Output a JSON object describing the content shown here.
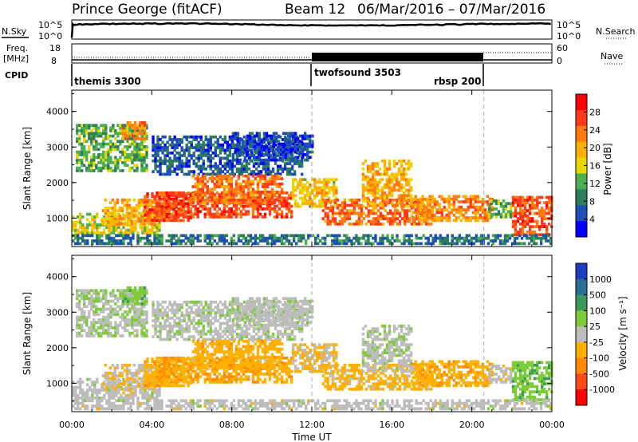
{
  "title_station": "Prince George (fitACF)",
  "title_beam": "Beam 12",
  "title_dates": "06/Mar/2016 – 07/Mar/2016",
  "header": {
    "nsky_label": "N.Sky",
    "nsky_ticks": [
      "10^5",
      "10^0"
    ],
    "nsearch_label": "N.Search",
    "freq_label_1": "Freq.",
    "freq_label_2": "[MHz]",
    "freq_ticks": [
      "18",
      "8"
    ],
    "nave_ticks": [
      "60",
      "0"
    ],
    "nave_label": "Nave",
    "cpid_label": "CPID",
    "cpid_segments": [
      {
        "label": "themis 3300",
        "start_hour": 0
      },
      {
        "label": "twofsound 3503",
        "start_hour": 12
      },
      {
        "label": "rbsp 200",
        "start_hour": 20.6
      }
    ]
  },
  "axes": {
    "y_label": "Slant Range [km]",
    "y_ticks": [
      "4000",
      "3000",
      "2000",
      "1000"
    ],
    "x_label": "Time UT",
    "x_ticks": [
      "00:00",
      "04:00",
      "08:00",
      "12:00",
      "16:00",
      "20:00",
      "00:00"
    ]
  },
  "colorbars": {
    "power_label": "Power [dB]",
    "power_ticks": [
      "28",
      "24",
      "20",
      "16",
      "12",
      "8",
      "4"
    ],
    "power_colors": [
      "#ff0000",
      "#ff3a1a",
      "#ff7a10",
      "#ffb000",
      "#e8d800",
      "#4caf50",
      "#2e7d5b",
      "#1d4fb5",
      "#0000ff"
    ],
    "velocity_label": "Velocity [m s⁻¹]",
    "velocity_ticks": [
      "1000",
      "500",
      "100",
      "25",
      "-25",
      "-100",
      "-500",
      "-1000"
    ],
    "velocity_colors": [
      "#1d3fbf",
      "#2a6f9a",
      "#3a9a5c",
      "#7ecb3a",
      "#bdbdbd",
      "#ffb000",
      "#ff8c00",
      "#ff4a1a",
      "#ff0000"
    ]
  },
  "chart_data": {
    "type": "heatmap",
    "x_range_hours": [
      0,
      24
    ],
    "y_range_km": [
      200,
      4600
    ],
    "power_range_db": [
      0,
      32
    ],
    "velocity_range_ms": [
      -1200,
      1200
    ],
    "mode_boundaries_hours": [
      12,
      20.6
    ],
    "nsky_log_range": [
      0,
      5
    ],
    "freq_range_mhz": [
      8,
      18
    ],
    "nave_range": [
      0,
      60
    ],
    "regions": [
      {
        "t0": 0.0,
        "t1": 4.4,
        "r0": 550,
        "r1": 1100,
        "power": 16,
        "velocity": 0
      },
      {
        "t0": 0.2,
        "t1": 3.8,
        "r0": 2300,
        "r1": 3600,
        "power": 12,
        "velocity": 80
      },
      {
        "t0": 1.5,
        "t1": 4.2,
        "r0": 800,
        "r1": 1500,
        "power": 20,
        "velocity": -120
      },
      {
        "t0": 2.5,
        "t1": 3.6,
        "r0": 3200,
        "r1": 3700,
        "power": 22,
        "velocity": 300
      },
      {
        "t0": 3.6,
        "t1": 6.0,
        "r0": 900,
        "r1": 1700,
        "power": 26,
        "velocity": -300
      },
      {
        "t0": 4.2,
        "t1": 11.0,
        "r0": 1000,
        "r1": 1700,
        "power": 26,
        "velocity": -350
      },
      {
        "t0": 4.0,
        "t1": 11.5,
        "r0": 2200,
        "r1": 3300,
        "power": 6,
        "velocity": 50
      },
      {
        "t0": 6.0,
        "t1": 10.5,
        "r0": 1400,
        "r1": 2200,
        "power": 24,
        "velocity": -280
      },
      {
        "t0": 8.0,
        "t1": 12.0,
        "r0": 2600,
        "r1": 3400,
        "power": 5,
        "velocity": 20
      },
      {
        "t0": 11.0,
        "t1": 13.2,
        "r0": 1300,
        "r1": 2100,
        "power": 18,
        "velocity": -150
      },
      {
        "t0": 12.5,
        "t1": 18.0,
        "r0": 800,
        "r1": 1500,
        "power": 24,
        "velocity": -250
      },
      {
        "t0": 14.5,
        "t1": 17.0,
        "r0": 1300,
        "r1": 2600,
        "power": 20,
        "velocity": 60
      },
      {
        "t0": 17.0,
        "t1": 21.0,
        "r0": 900,
        "r1": 1600,
        "power": 22,
        "velocity": -300
      },
      {
        "t0": 20.8,
        "t1": 22.0,
        "r0": 1000,
        "r1": 1500,
        "power": 12,
        "velocity": -30
      },
      {
        "t0": 22.0,
        "t1": 24.0,
        "r0": 500,
        "r1": 1600,
        "power": 26,
        "velocity": 300
      },
      {
        "t0": 0.0,
        "t1": 24.0,
        "r0": 250,
        "r1": 500,
        "power": 8,
        "velocity": 0
      }
    ]
  }
}
